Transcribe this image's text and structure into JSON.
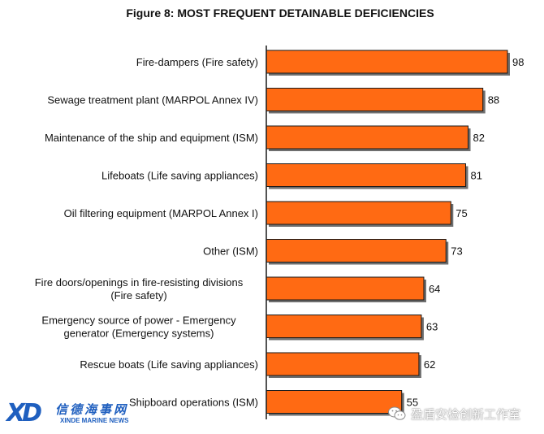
{
  "chart_data": {
    "type": "bar",
    "orientation": "horizontal",
    "title": "Figure 8: MOST FREQUENT DETAINABLE DEFICIENCIES",
    "categories": [
      [
        "Fire-dampers (Fire safety)"
      ],
      [
        "Sewage treatment plant (MARPOL Annex IV)"
      ],
      [
        "Maintenance of the ship and equipment (ISM)"
      ],
      [
        "Lifeboats (Life saving appliances)"
      ],
      [
        "Oil filtering equipment (MARPOL Annex I)"
      ],
      [
        "Other (ISM)"
      ],
      [
        "Fire doors/openings in fire-resisting divisions",
        "(Fire safety)"
      ],
      [
        "Emergency source of power - Emergency",
        "generator (Emergency systems)"
      ],
      [
        "Rescue boats (Life saving appliances)"
      ],
      [
        "Shipboard operations (ISM)"
      ]
    ],
    "values": [
      98,
      88,
      82,
      81,
      75,
      73,
      64,
      63,
      62,
      55
    ],
    "xlim": [
      0,
      98
    ],
    "bar_color": "#ff6a13",
    "data_labels": true,
    "legend": "none",
    "grid": false
  },
  "watermarks": {
    "left_mark": "XD",
    "left_cn": "信德海事网",
    "left_en": "XINDE MARINE NEWS",
    "right_text": "盈盾安检创新工作室",
    "right_icon": "wechat-icon"
  }
}
